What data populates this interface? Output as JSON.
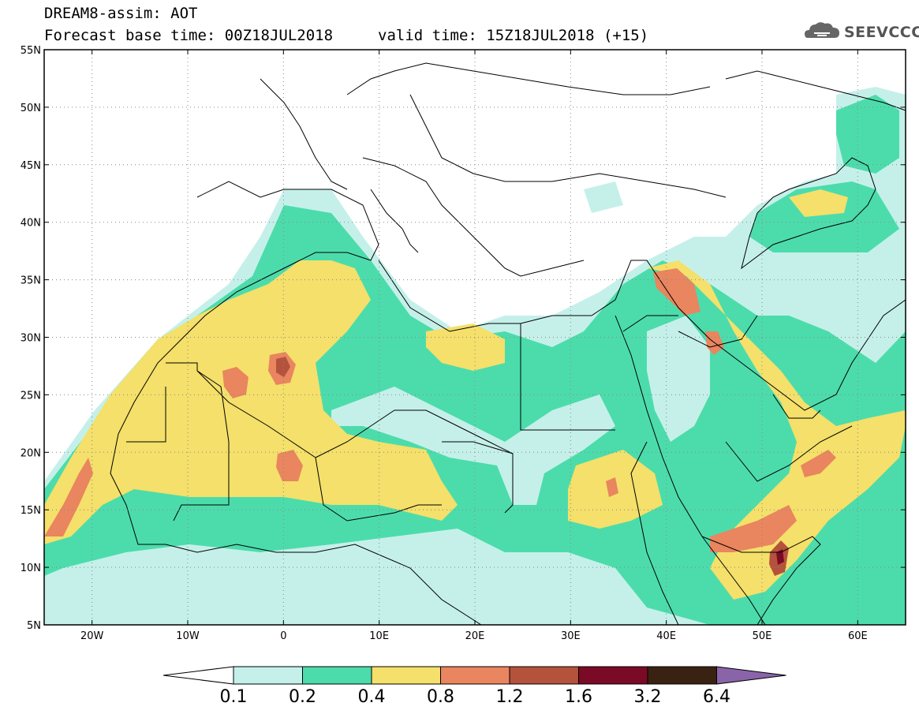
{
  "header": {
    "model_line": "DREAM8-assim: AOT",
    "base_time_line": "Forecast base time: 00Z18JUL2018",
    "valid_time_line": "valid time: 15Z18JUL2018 (+15)"
  },
  "logo": {
    "text": "SEEVCCC",
    "icon": "cloud-icon"
  },
  "map": {
    "lat_labels": [
      "55N",
      "50N",
      "45N",
      "40N",
      "35N",
      "30N",
      "25N",
      "20N",
      "15N",
      "10N",
      "5N"
    ],
    "lon_labels": [
      "20W",
      "10W",
      "0",
      "10E",
      "20E",
      "30E",
      "40E",
      "50E",
      "60E"
    ],
    "field_colors": {
      "c01": "#c5f0ea",
      "c02": "#4cdcab",
      "c04": "#f4e06a",
      "c08": "#e9855f",
      "c12": "#b5523c",
      "c16": "#7a0a26",
      "c32": "#3a2212",
      "c64": "#8a64a8",
      "border": "#000000"
    }
  },
  "colorbar": {
    "labels": [
      "0.1",
      "0.2",
      "0.4",
      "0.8",
      "1.2",
      "1.6",
      "3.2",
      "6.4"
    ],
    "colors": [
      "#ffffff",
      "#c5f0ea",
      "#4cdcab",
      "#f4e06a",
      "#e9855f",
      "#b5523c",
      "#7a0a26",
      "#3a2212",
      "#8a64a8"
    ]
  }
}
